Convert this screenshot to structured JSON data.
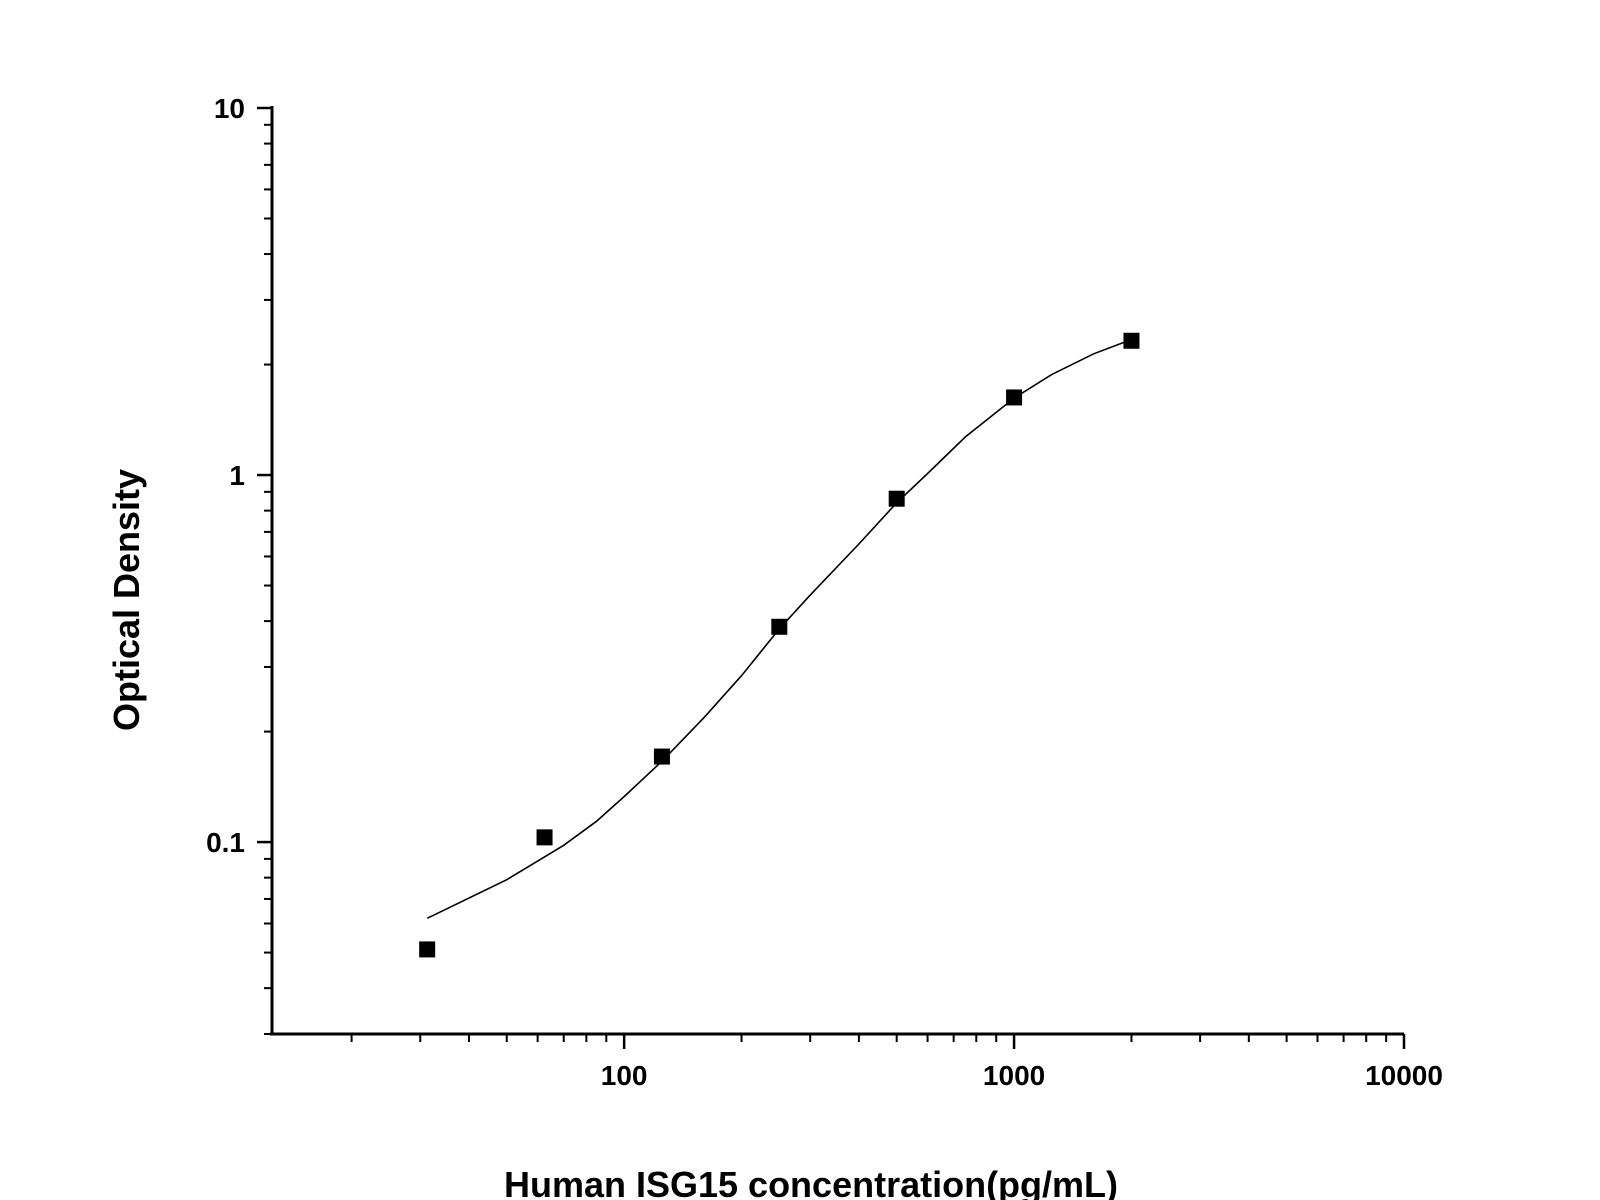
{
  "chart_data": {
    "type": "scatter",
    "title": "",
    "xlabel": "Human ISG15 concentration(pg/mL)",
    "ylabel": "Optical Density",
    "x_scale": "log",
    "y_scale": "log",
    "xlim": [
      12.5,
      10000
    ],
    "ylim": [
      0.03,
      10
    ],
    "x_ticks": [
      {
        "value": 100,
        "label": "100"
      },
      {
        "value": 1000,
        "label": "1000"
      },
      {
        "value": 10000,
        "label": "10000"
      }
    ],
    "y_ticks": [
      {
        "value": 0.1,
        "label": "0.1"
      },
      {
        "value": 1,
        "label": "1"
      },
      {
        "value": 10,
        "label": "10"
      }
    ],
    "grid": false,
    "legend": "none",
    "series": [
      {
        "points": [
          {
            "x": 31.25,
            "y": 0.051
          },
          {
            "x": 62.5,
            "y": 0.103
          },
          {
            "x": 125,
            "y": 0.171
          },
          {
            "x": 250,
            "y": 0.386
          },
          {
            "x": 500,
            "y": 0.862
          },
          {
            "x": 1000,
            "y": 1.627
          },
          {
            "x": 2000,
            "y": 2.322
          }
        ],
        "marker": "square",
        "color": "#000000"
      }
    ],
    "fit_curve": {
      "color": "#000000",
      "points": [
        {
          "x": 31.25,
          "y": 0.062
        },
        {
          "x": 50,
          "y": 0.079
        },
        {
          "x": 70,
          "y": 0.098
        },
        {
          "x": 85,
          "y": 0.114
        },
        {
          "x": 100,
          "y": 0.133
        },
        {
          "x": 125,
          "y": 0.166
        },
        {
          "x": 160,
          "y": 0.218
        },
        {
          "x": 200,
          "y": 0.284
        },
        {
          "x": 250,
          "y": 0.381
        },
        {
          "x": 300,
          "y": 0.471
        },
        {
          "x": 400,
          "y": 0.649
        },
        {
          "x": 500,
          "y": 0.84
        },
        {
          "x": 600,
          "y": 1.01
        },
        {
          "x": 750,
          "y": 1.27
        },
        {
          "x": 1000,
          "y": 1.62
        },
        {
          "x": 1250,
          "y": 1.88
        },
        {
          "x": 1600,
          "y": 2.14
        },
        {
          "x": 2000,
          "y": 2.34
        }
      ]
    }
  }
}
